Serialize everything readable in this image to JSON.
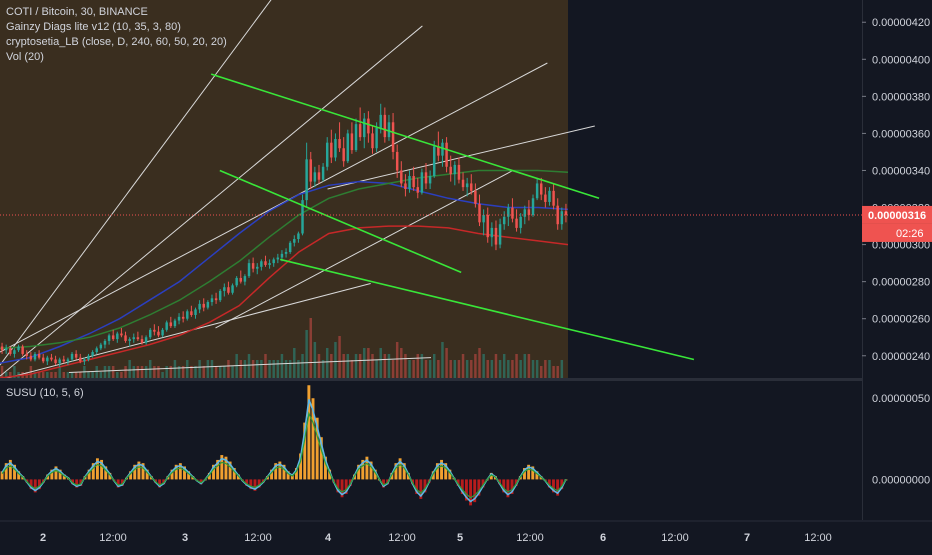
{
  "header": {
    "symbol_line": "COTI / Bitcoin, 30, BINANCE",
    "indicators": [
      "Gainzy Diags lite v12 (10, 35, 3, 80)",
      "cryptosetia_LB (close, D, 240, 60, 50, 20, 20)",
      "Vol (20)"
    ]
  },
  "price_panel": {
    "current_price": "0.00000316",
    "countdown": "02:26",
    "y_ticks": [
      "0.00000420",
      "0.00000400",
      "0.00000380",
      "0.00000360",
      "0.00000340",
      "0.00000320",
      "0.00000300",
      "0.00000280",
      "0.00000260",
      "0.00000240"
    ]
  },
  "oscillator_panel": {
    "title": "SUSU (10, 5, 6)",
    "y_ticks": [
      "0.00000050",
      "0.00000000"
    ]
  },
  "x_axis": {
    "ticks": [
      "2",
      "12:00",
      "3",
      "12:00",
      "4",
      "12:00",
      "5",
      "12:00",
      "6",
      "12:00",
      "7",
      "12:00"
    ]
  },
  "colors": {
    "background": "#131722",
    "history_shade": "#3a2e1f",
    "candle_up": "#26a69a",
    "candle_down": "#ef5350",
    "trendline_green": "#39e639",
    "trendline_white": "#d9d9d9",
    "ma_blue": "#2b3fbf",
    "ma_red": "#c62828",
    "ma_green": "#2e7d32",
    "price_tag": "#ef5350",
    "osc_up": "#f0a030",
    "osc_down": "#b71c1c",
    "osc_line_blue": "#5fb8e8"
  },
  "chart_data": {
    "type": "candlestick",
    "title": "COTI / Bitcoin, 30, BINANCE",
    "ylim": [
      2.28e-06,
      4.32e-06
    ],
    "osc_ylim": [
      -2.5e-07,
      6e-07
    ],
    "x_range": [
      "Day 2 00:00",
      "Day 7 18:00"
    ],
    "candles": [
      {
        "o": 2.45,
        "h": 2.47,
        "l": 2.41,
        "c": 2.43
      },
      {
        "o": 2.43,
        "h": 2.46,
        "l": 2.41,
        "c": 2.44
      },
      {
        "o": 2.44,
        "h": 2.45,
        "l": 2.4,
        "c": 2.41
      },
      {
        "o": 2.41,
        "h": 2.44,
        "l": 2.39,
        "c": 2.43
      },
      {
        "o": 2.43,
        "h": 2.46,
        "l": 2.42,
        "c": 2.45
      },
      {
        "o": 2.45,
        "h": 2.46,
        "l": 2.4,
        "c": 2.41
      },
      {
        "o": 2.41,
        "h": 2.43,
        "l": 2.38,
        "c": 2.4
      },
      {
        "o": 2.4,
        "h": 2.42,
        "l": 2.37,
        "c": 2.38
      },
      {
        "o": 2.38,
        "h": 2.42,
        "l": 2.37,
        "c": 2.41
      },
      {
        "o": 2.41,
        "h": 2.43,
        "l": 2.38,
        "c": 2.39
      },
      {
        "o": 2.39,
        "h": 2.41,
        "l": 2.36,
        "c": 2.37
      },
      {
        "o": 2.37,
        "h": 2.4,
        "l": 2.35,
        "c": 2.39
      },
      {
        "o": 2.39,
        "h": 2.41,
        "l": 2.37,
        "c": 2.38
      },
      {
        "o": 2.38,
        "h": 2.4,
        "l": 2.35,
        "c": 2.36
      },
      {
        "o": 2.36,
        "h": 2.39,
        "l": 2.34,
        "c": 2.38
      },
      {
        "o": 2.38,
        "h": 2.4,
        "l": 2.36,
        "c": 2.37
      },
      {
        "o": 2.37,
        "h": 2.39,
        "l": 2.35,
        "c": 2.38
      },
      {
        "o": 2.38,
        "h": 2.42,
        "l": 2.37,
        "c": 2.41
      },
      {
        "o": 2.41,
        "h": 2.43,
        "l": 2.38,
        "c": 2.39
      },
      {
        "o": 2.39,
        "h": 2.41,
        "l": 2.36,
        "c": 2.37
      },
      {
        "o": 2.37,
        "h": 2.39,
        "l": 2.35,
        "c": 2.38
      },
      {
        "o": 2.38,
        "h": 2.41,
        "l": 2.37,
        "c": 2.4
      },
      {
        "o": 2.4,
        "h": 2.43,
        "l": 2.39,
        "c": 2.42
      },
      {
        "o": 2.42,
        "h": 2.45,
        "l": 2.41,
        "c": 2.44
      },
      {
        "o": 2.44,
        "h": 2.47,
        "l": 2.43,
        "c": 2.46
      },
      {
        "o": 2.46,
        "h": 2.49,
        "l": 2.44,
        "c": 2.48
      },
      {
        "o": 2.48,
        "h": 2.52,
        "l": 2.46,
        "c": 2.51
      },
      {
        "o": 2.51,
        "h": 2.54,
        "l": 2.48,
        "c": 2.49
      },
      {
        "o": 2.49,
        "h": 2.53,
        "l": 2.47,
        "c": 2.52
      },
      {
        "o": 2.52,
        "h": 2.55,
        "l": 2.5,
        "c": 2.51
      },
      {
        "o": 2.51,
        "h": 2.53,
        "l": 2.47,
        "c": 2.48
      },
      {
        "o": 2.48,
        "h": 2.5,
        "l": 2.45,
        "c": 2.49
      },
      {
        "o": 2.49,
        "h": 2.52,
        "l": 2.47,
        "c": 2.5
      },
      {
        "o": 2.5,
        "h": 2.53,
        "l": 2.48,
        "c": 2.49
      },
      {
        "o": 2.49,
        "h": 2.51,
        "l": 2.46,
        "c": 2.47
      },
      {
        "o": 2.47,
        "h": 2.51,
        "l": 2.46,
        "c": 2.5
      },
      {
        "o": 2.5,
        "h": 2.55,
        "l": 2.49,
        "c": 2.54
      },
      {
        "o": 2.54,
        "h": 2.57,
        "l": 2.51,
        "c": 2.53
      },
      {
        "o": 2.53,
        "h": 2.56,
        "l": 2.5,
        "c": 2.51
      },
      {
        "o": 2.51,
        "h": 2.55,
        "l": 2.5,
        "c": 2.54
      },
      {
        "o": 2.54,
        "h": 2.59,
        "l": 2.53,
        "c": 2.58
      },
      {
        "o": 2.58,
        "h": 2.61,
        "l": 2.55,
        "c": 2.56
      },
      {
        "o": 2.56,
        "h": 2.6,
        "l": 2.55,
        "c": 2.59
      },
      {
        "o": 2.59,
        "h": 2.63,
        "l": 2.57,
        "c": 2.61
      },
      {
        "o": 2.61,
        "h": 2.64,
        "l": 2.58,
        "c": 2.6
      },
      {
        "o": 2.6,
        "h": 2.65,
        "l": 2.59,
        "c": 2.64
      },
      {
        "o": 2.64,
        "h": 2.67,
        "l": 2.61,
        "c": 2.62
      },
      {
        "o": 2.62,
        "h": 2.66,
        "l": 2.6,
        "c": 2.65
      },
      {
        "o": 2.65,
        "h": 2.7,
        "l": 2.63,
        "c": 2.68
      },
      {
        "o": 2.68,
        "h": 2.71,
        "l": 2.64,
        "c": 2.66
      },
      {
        "o": 2.66,
        "h": 2.7,
        "l": 2.65,
        "c": 2.69
      },
      {
        "o": 2.69,
        "h": 2.73,
        "l": 2.67,
        "c": 2.71
      },
      {
        "o": 2.71,
        "h": 2.74,
        "l": 2.68,
        "c": 2.7
      },
      {
        "o": 2.7,
        "h": 2.76,
        "l": 2.69,
        "c": 2.75
      },
      {
        "o": 2.75,
        "h": 2.79,
        "l": 2.72,
        "c": 2.77
      },
      {
        "o": 2.77,
        "h": 2.8,
        "l": 2.73,
        "c": 2.74
      },
      {
        "o": 2.74,
        "h": 2.79,
        "l": 2.73,
        "c": 2.78
      },
      {
        "o": 2.78,
        "h": 2.83,
        "l": 2.77,
        "c": 2.82
      },
      {
        "o": 2.82,
        "h": 2.86,
        "l": 2.79,
        "c": 2.8
      },
      {
        "o": 2.8,
        "h": 2.84,
        "l": 2.78,
        "c": 2.83
      },
      {
        "o": 2.83,
        "h": 2.92,
        "l": 2.82,
        "c": 2.9
      },
      {
        "o": 2.9,
        "h": 2.93,
        "l": 2.85,
        "c": 2.87
      },
      {
        "o": 2.87,
        "h": 2.9,
        "l": 2.84,
        "c": 2.88
      },
      {
        "o": 2.88,
        "h": 2.92,
        "l": 2.86,
        "c": 2.91
      },
      {
        "o": 2.91,
        "h": 2.94,
        "l": 2.88,
        "c": 2.89
      },
      {
        "o": 2.89,
        "h": 2.92,
        "l": 2.87,
        "c": 2.9
      },
      {
        "o": 2.9,
        "h": 2.93,
        "l": 2.88,
        "c": 2.92
      },
      {
        "o": 2.92,
        "h": 2.95,
        "l": 2.9,
        "c": 2.93
      },
      {
        "o": 2.93,
        "h": 2.97,
        "l": 2.91,
        "c": 2.95
      },
      {
        "o": 2.95,
        "h": 2.98,
        "l": 2.93,
        "c": 2.96
      },
      {
        "o": 2.96,
        "h": 3.02,
        "l": 2.95,
        "c": 3.01
      },
      {
        "o": 3.01,
        "h": 3.05,
        "l": 2.99,
        "c": 3.03
      },
      {
        "o": 3.03,
        "h": 3.07,
        "l": 3.01,
        "c": 3.06
      },
      {
        "o": 3.06,
        "h": 3.27,
        "l": 3.05,
        "c": 3.24
      },
      {
        "o": 3.24,
        "h": 3.55,
        "l": 3.2,
        "c": 3.46
      },
      {
        "o": 3.46,
        "h": 3.5,
        "l": 3.3,
        "c": 3.34
      },
      {
        "o": 3.34,
        "h": 3.42,
        "l": 3.31,
        "c": 3.39
      },
      {
        "o": 3.39,
        "h": 3.43,
        "l": 3.33,
        "c": 3.35
      },
      {
        "o": 3.35,
        "h": 3.44,
        "l": 3.34,
        "c": 3.42
      },
      {
        "o": 3.42,
        "h": 3.58,
        "l": 3.4,
        "c": 3.55
      },
      {
        "o": 3.55,
        "h": 3.62,
        "l": 3.44,
        "c": 3.47
      },
      {
        "o": 3.47,
        "h": 3.6,
        "l": 3.45,
        "c": 3.57
      },
      {
        "o": 3.57,
        "h": 3.66,
        "l": 3.5,
        "c": 3.52
      },
      {
        "o": 3.52,
        "h": 3.58,
        "l": 3.42,
        "c": 3.45
      },
      {
        "o": 3.45,
        "h": 3.62,
        "l": 3.44,
        "c": 3.6
      },
      {
        "o": 3.6,
        "h": 3.66,
        "l": 3.49,
        "c": 3.51
      },
      {
        "o": 3.51,
        "h": 3.68,
        "l": 3.5,
        "c": 3.65
      },
      {
        "o": 3.65,
        "h": 3.74,
        "l": 3.56,
        "c": 3.58
      },
      {
        "o": 3.58,
        "h": 3.71,
        "l": 3.52,
        "c": 3.68
      },
      {
        "o": 3.68,
        "h": 3.72,
        "l": 3.55,
        "c": 3.6
      },
      {
        "o": 3.6,
        "h": 3.64,
        "l": 3.49,
        "c": 3.52
      },
      {
        "o": 3.52,
        "h": 3.66,
        "l": 3.5,
        "c": 3.63
      },
      {
        "o": 3.63,
        "h": 3.76,
        "l": 3.6,
        "c": 3.7
      },
      {
        "o": 3.7,
        "h": 3.74,
        "l": 3.55,
        "c": 3.58
      },
      {
        "o": 3.58,
        "h": 3.7,
        "l": 3.56,
        "c": 3.66
      },
      {
        "o": 3.66,
        "h": 3.71,
        "l": 3.46,
        "c": 3.5
      },
      {
        "o": 3.5,
        "h": 3.54,
        "l": 3.36,
        "c": 3.4
      },
      {
        "o": 3.4,
        "h": 3.45,
        "l": 3.31,
        "c": 3.33
      },
      {
        "o": 3.33,
        "h": 3.38,
        "l": 3.26,
        "c": 3.3
      },
      {
        "o": 3.3,
        "h": 3.4,
        "l": 3.28,
        "c": 3.37
      },
      {
        "o": 3.37,
        "h": 3.42,
        "l": 3.29,
        "c": 3.31
      },
      {
        "o": 3.31,
        "h": 3.36,
        "l": 3.25,
        "c": 3.28
      },
      {
        "o": 3.28,
        "h": 3.41,
        "l": 3.27,
        "c": 3.39
      },
      {
        "o": 3.39,
        "h": 3.44,
        "l": 3.3,
        "c": 3.33
      },
      {
        "o": 3.33,
        "h": 3.4,
        "l": 3.3,
        "c": 3.37
      },
      {
        "o": 3.37,
        "h": 3.56,
        "l": 3.36,
        "c": 3.53
      },
      {
        "o": 3.53,
        "h": 3.61,
        "l": 3.45,
        "c": 3.48
      },
      {
        "o": 3.48,
        "h": 3.57,
        "l": 3.42,
        "c": 3.55
      },
      {
        "o": 3.55,
        "h": 3.58,
        "l": 3.39,
        "c": 3.42
      },
      {
        "o": 3.42,
        "h": 3.48,
        "l": 3.34,
        "c": 3.38
      },
      {
        "o": 3.38,
        "h": 3.45,
        "l": 3.32,
        "c": 3.43
      },
      {
        "o": 3.43,
        "h": 3.47,
        "l": 3.33,
        "c": 3.35
      },
      {
        "o": 3.35,
        "h": 3.39,
        "l": 3.29,
        "c": 3.31
      },
      {
        "o": 3.31,
        "h": 3.36,
        "l": 3.26,
        "c": 3.33
      },
      {
        "o": 3.33,
        "h": 3.38,
        "l": 3.27,
        "c": 3.29
      },
      {
        "o": 3.29,
        "h": 3.33,
        "l": 3.2,
        "c": 3.22
      },
      {
        "o": 3.22,
        "h": 3.27,
        "l": 3.1,
        "c": 3.12
      },
      {
        "o": 3.12,
        "h": 3.19,
        "l": 3.05,
        "c": 3.16
      },
      {
        "o": 3.16,
        "h": 3.2,
        "l": 3.01,
        "c": 3.04
      },
      {
        "o": 3.04,
        "h": 3.12,
        "l": 2.99,
        "c": 3.09
      },
      {
        "o": 3.09,
        "h": 3.13,
        "l": 2.97,
        "c": 3.0
      },
      {
        "o": 3.0,
        "h": 3.14,
        "l": 2.98,
        "c": 3.11
      },
      {
        "o": 3.11,
        "h": 3.18,
        "l": 3.08,
        "c": 3.15
      },
      {
        "o": 3.15,
        "h": 3.22,
        "l": 3.1,
        "c": 3.2
      },
      {
        "o": 3.2,
        "h": 3.25,
        "l": 3.12,
        "c": 3.14
      },
      {
        "o": 3.14,
        "h": 3.19,
        "l": 3.07,
        "c": 3.09
      },
      {
        "o": 3.09,
        "h": 3.17,
        "l": 3.06,
        "c": 3.15
      },
      {
        "o": 3.15,
        "h": 3.21,
        "l": 3.11,
        "c": 3.19
      },
      {
        "o": 3.19,
        "h": 3.24,
        "l": 3.13,
        "c": 3.16
      },
      {
        "o": 3.16,
        "h": 3.27,
        "l": 3.15,
        "c": 3.25
      },
      {
        "o": 3.25,
        "h": 3.36,
        "l": 3.24,
        "c": 3.33
      },
      {
        "o": 3.33,
        "h": 3.36,
        "l": 3.24,
        "c": 3.27
      },
      {
        "o": 3.27,
        "h": 3.31,
        "l": 3.2,
        "c": 3.23
      },
      {
        "o": 3.23,
        "h": 3.31,
        "l": 3.21,
        "c": 3.29
      },
      {
        "o": 3.29,
        "h": 3.33,
        "l": 3.19,
        "c": 3.21
      },
      {
        "o": 3.21,
        "h": 3.25,
        "l": 3.08,
        "c": 3.11
      },
      {
        "o": 3.11,
        "h": 3.2,
        "l": 3.08,
        "c": 3.18
      },
      {
        "o": 3.18,
        "h": 3.22,
        "l": 3.12,
        "c": 3.16
      }
    ],
    "ma_blue": [
      2.36,
      2.39,
      2.45,
      2.52,
      2.6,
      2.7,
      2.8,
      2.93,
      3.06,
      3.18,
      3.27,
      3.32,
      3.34,
      3.33,
      3.29,
      3.25,
      3.22,
      3.2,
      3.2,
      3.19
    ],
    "ma_red": [
      2.28,
      2.3,
      2.34,
      2.38,
      2.42,
      2.46,
      2.51,
      2.58,
      2.67,
      2.82,
      2.96,
      3.06,
      3.09,
      3.1,
      3.1,
      3.09,
      3.06,
      3.04,
      3.02,
      3.0
    ],
    "ma_green": [
      2.44,
      2.45,
      2.47,
      2.5,
      2.55,
      2.62,
      2.7,
      2.8,
      2.91,
      3.04,
      3.16,
      3.25,
      3.3,
      3.33,
      3.36,
      3.38,
      3.4,
      3.4,
      3.4,
      3.39
    ],
    "trendlines_green": [
      {
        "from": [
          0.245,
          3.92
        ],
        "to": [
          0.695,
          3.25
        ]
      },
      {
        "from": [
          0.255,
          3.4
        ],
        "to": [
          0.535,
          2.85
        ]
      },
      {
        "from": [
          0.325,
          2.92
        ],
        "to": [
          0.805,
          2.38
        ]
      }
    ],
    "trendlines_white": [
      {
        "from": [
          0.0,
          2.42
        ],
        "to": [
          0.635,
          3.98
        ]
      },
      {
        "from": [
          0.0,
          2.29
        ],
        "to": [
          0.49,
          4.18
        ]
      },
      {
        "from": [
          0.0,
          2.35
        ],
        "to": [
          0.335,
          4.45
        ]
      },
      {
        "from": [
          0.25,
          2.55
        ],
        "to": [
          0.595,
          3.4
        ]
      },
      {
        "from": [
          0.0,
          2.27
        ],
        "to": [
          0.43,
          2.79
        ]
      },
      {
        "from": [
          0.38,
          3.3
        ],
        "to": [
          0.69,
          3.64
        ]
      },
      {
        "from": [
          0.08,
          2.31
        ],
        "to": [
          0.5,
          2.39
        ]
      }
    ],
    "volume_relative": [
      2,
      1,
      1,
      2,
      1,
      1,
      1,
      2,
      1,
      1,
      1,
      1,
      1,
      1,
      2,
      1,
      1,
      1,
      1,
      1,
      2,
      1,
      1,
      2,
      1,
      2,
      2,
      2,
      1,
      1,
      2,
      3,
      2,
      2,
      2,
      2,
      3,
      2,
      2,
      1,
      2,
      2,
      3,
      2,
      2,
      3,
      2,
      2,
      3,
      2,
      3,
      3,
      2,
      2,
      2,
      3,
      2,
      4,
      3,
      3,
      4,
      3,
      3,
      3,
      4,
      3,
      3,
      3,
      4,
      3,
      3,
      5,
      3,
      4,
      8,
      10,
      6,
      4,
      3,
      5,
      4,
      6,
      7,
      4,
      4,
      3,
      4,
      4,
      5,
      5,
      4,
      3,
      5,
      4,
      4,
      3,
      6,
      5,
      4,
      3,
      3,
      4,
      4,
      3,
      3,
      4,
      3,
      6,
      5,
      3,
      3,
      3,
      4,
      3,
      3,
      4,
      5,
      4,
      3,
      3,
      4,
      3,
      4,
      3,
      3,
      4,
      3,
      4,
      4,
      3,
      3,
      2,
      3,
      3,
      2,
      2,
      3
    ],
    "oscillator": [
      0.05,
      0.1,
      0.12,
      0.09,
      0.05,
      0.02,
      -0.02,
      -0.06,
      -0.08,
      -0.06,
      -0.02,
      0.03,
      0.06,
      0.08,
      0.06,
      0.03,
      0.01,
      -0.03,
      -0.05,
      -0.04,
      0.02,
      0.06,
      0.1,
      0.13,
      0.12,
      0.08,
      0.04,
      -0.01,
      -0.05,
      -0.04,
      0.01,
      0.05,
      0.09,
      0.11,
      0.1,
      0.06,
      0.02,
      -0.02,
      -0.05,
      -0.03,
      0.02,
      0.06,
      0.09,
      0.1,
      0.08,
      0.05,
      0.02,
      -0.01,
      -0.03,
      0.0,
      0.04,
      0.09,
      0.12,
      0.15,
      0.14,
      0.11,
      0.07,
      0.03,
      -0.01,
      -0.04,
      -0.06,
      -0.07,
      -0.05,
      -0.02,
      0.02,
      0.06,
      0.1,
      0.11,
      0.09,
      0.05,
      0.03,
      0.07,
      0.16,
      0.35,
      0.58,
      0.5,
      0.38,
      0.26,
      0.14,
      0.06,
      -0.02,
      -0.08,
      -0.11,
      -0.09,
      -0.04,
      0.03,
      0.09,
      0.12,
      0.14,
      0.11,
      0.06,
      0.0,
      -0.05,
      -0.03,
      0.04,
      0.1,
      0.13,
      0.1,
      0.04,
      -0.03,
      -0.09,
      -0.12,
      -0.08,
      -0.02,
      0.05,
      0.1,
      0.12,
      0.1,
      0.06,
      0.01,
      -0.04,
      -0.09,
      -0.13,
      -0.16,
      -0.14,
      -0.1,
      -0.05,
      0.0,
      0.04,
      0.02,
      -0.03,
      -0.08,
      -0.11,
      -0.09,
      -0.04,
      0.02,
      0.07,
      0.09,
      0.08,
      0.05,
      0.02,
      -0.01,
      -0.05,
      -0.08,
      -0.1,
      -0.06,
      0.0
    ]
  }
}
